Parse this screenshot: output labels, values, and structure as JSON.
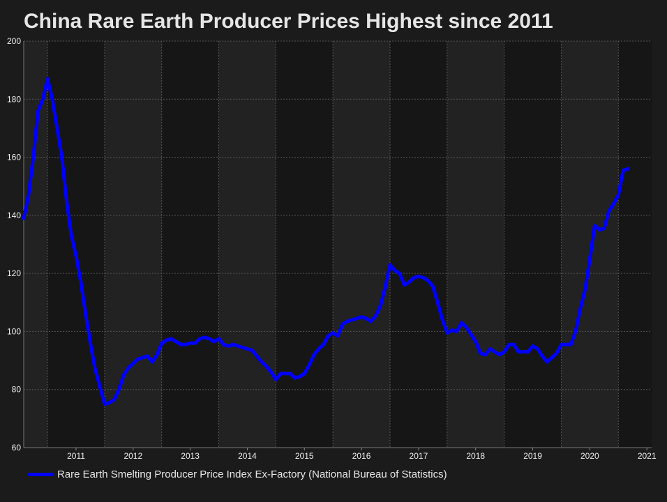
{
  "chart_data": {
    "type": "line",
    "title": "China Rare Earth Producer Prices Highest since 2011",
    "xlabel": "",
    "ylabel": "",
    "ylim": [
      60,
      200
    ],
    "xlim": [
      "2010-08",
      "2021-08"
    ],
    "yticks": [
      60,
      80,
      100,
      120,
      140,
      160,
      180,
      200
    ],
    "xticks": [
      "2011",
      "2012",
      "2013",
      "2014",
      "2015",
      "2016",
      "2017",
      "2018",
      "2019",
      "2020",
      "2021"
    ],
    "grid": true,
    "legend_position": "bottom-left",
    "colors": {
      "series": "#0000ff",
      "background": "#1b1b1b",
      "band_dark": "#161616",
      "band_light": "#222222",
      "grid": "#555555"
    },
    "series": [
      {
        "name": "Rare Earth Smelting Producer Price Index Ex-Factory (National Bureau of Statistics)",
        "points": [
          [
            "2010-08",
            139
          ],
          [
            "2010-09",
            147
          ],
          [
            "2010-10",
            160
          ],
          [
            "2010-11",
            176
          ],
          [
            "2010-12",
            180
          ],
          [
            "2011-01",
            187
          ],
          [
            "2011-02",
            180
          ],
          [
            "2011-03",
            170
          ],
          [
            "2011-04",
            160
          ],
          [
            "2011-05",
            145
          ],
          [
            "2011-06",
            133
          ],
          [
            "2011-07",
            126
          ],
          [
            "2011-08",
            117
          ],
          [
            "2011-09",
            106
          ],
          [
            "2011-10",
            96
          ],
          [
            "2011-11",
            87
          ],
          [
            "2011-12",
            81
          ],
          [
            "2012-01",
            75
          ],
          [
            "2012-02",
            75.5
          ],
          [
            "2012-03",
            76.5
          ],
          [
            "2012-04",
            80
          ],
          [
            "2012-05",
            85
          ],
          [
            "2012-06",
            87.5
          ],
          [
            "2012-07",
            89
          ],
          [
            "2012-08",
            90.5
          ],
          [
            "2012-09",
            91
          ],
          [
            "2012-10",
            91.5
          ],
          [
            "2012-11",
            89.5
          ],
          [
            "2012-12",
            92
          ],
          [
            "2013-01",
            96
          ],
          [
            "2013-02",
            97
          ],
          [
            "2013-03",
            97.5
          ],
          [
            "2013-04",
            96.5
          ],
          [
            "2013-05",
            95.5
          ],
          [
            "2013-06",
            95.5
          ],
          [
            "2013-07",
            96
          ],
          [
            "2013-08",
            96
          ],
          [
            "2013-09",
            97.5
          ],
          [
            "2013-10",
            98
          ],
          [
            "2013-11",
            97.5
          ],
          [
            "2013-12",
            96.5
          ],
          [
            "2014-01",
            97.5
          ],
          [
            "2014-02",
            95.5
          ],
          [
            "2014-03",
            95
          ],
          [
            "2014-04",
            95.5
          ],
          [
            "2014-05",
            95
          ],
          [
            "2014-06",
            94.5
          ],
          [
            "2014-07",
            94
          ],
          [
            "2014-08",
            93.5
          ],
          [
            "2014-09",
            91.5
          ],
          [
            "2014-10",
            89.5
          ],
          [
            "2014-11",
            88
          ],
          [
            "2014-12",
            86
          ],
          [
            "2015-01",
            83.5
          ],
          [
            "2015-02",
            85.5
          ],
          [
            "2015-03",
            85.5
          ],
          [
            "2015-04",
            85.5
          ],
          [
            "2015-05",
            84
          ],
          [
            "2015-06",
            84.5
          ],
          [
            "2015-07",
            85.5
          ],
          [
            "2015-08",
            88.5
          ],
          [
            "2015-09",
            92
          ],
          [
            "2015-10",
            94
          ],
          [
            "2015-11",
            95.5
          ],
          [
            "2015-12",
            98.5
          ],
          [
            "2016-01",
            99.5
          ],
          [
            "2016-02",
            98.5
          ],
          [
            "2016-03",
            102.5
          ],
          [
            "2016-04",
            103.5
          ],
          [
            "2016-05",
            104
          ],
          [
            "2016-06",
            104.5
          ],
          [
            "2016-07",
            105
          ],
          [
            "2016-08",
            104.5
          ],
          [
            "2016-09",
            103.5
          ],
          [
            "2016-10",
            105.5
          ],
          [
            "2016-11",
            109
          ],
          [
            "2016-12",
            115.5
          ],
          [
            "2017-01",
            123
          ],
          [
            "2017-02",
            121
          ],
          [
            "2017-03",
            120
          ],
          [
            "2017-04",
            116
          ],
          [
            "2017-05",
            117
          ],
          [
            "2017-06",
            118.5
          ],
          [
            "2017-07",
            119
          ],
          [
            "2017-08",
            118.5
          ],
          [
            "2017-09",
            117.5
          ],
          [
            "2017-10",
            115.5
          ],
          [
            "2017-11",
            110
          ],
          [
            "2017-12",
            104
          ],
          [
            "2018-01",
            99.5
          ],
          [
            "2018-02",
            100.5
          ],
          [
            "2018-03",
            100
          ],
          [
            "2018-04",
            103
          ],
          [
            "2018-05",
            101.5
          ],
          [
            "2018-06",
            99
          ],
          [
            "2018-07",
            96.5
          ],
          [
            "2018-08",
            92.5
          ],
          [
            "2018-09",
            92
          ],
          [
            "2018-10",
            94
          ],
          [
            "2018-11",
            93
          ],
          [
            "2018-12",
            92
          ],
          [
            "2019-01",
            93
          ],
          [
            "2019-02",
            95.5
          ],
          [
            "2019-03",
            95.5
          ],
          [
            "2019-04",
            93
          ],
          [
            "2019-05",
            93
          ],
          [
            "2019-06",
            93
          ],
          [
            "2019-07",
            95
          ],
          [
            "2019-08",
            94
          ],
          [
            "2019-09",
            91.5
          ],
          [
            "2019-10",
            89.5
          ],
          [
            "2019-11",
            91
          ],
          [
            "2019-12",
            92.5
          ],
          [
            "2020-01",
            95.5
          ],
          [
            "2020-02",
            95.5
          ],
          [
            "2020-03",
            95.5
          ],
          [
            "2020-04",
            100
          ],
          [
            "2020-05",
            108
          ],
          [
            "2020-06",
            114.5
          ],
          [
            "2020-07",
            125
          ],
          [
            "2020-08",
            136.5
          ],
          [
            "2020-09",
            135
          ],
          [
            "2020-10",
            135.5
          ],
          [
            "2020-11",
            141.5
          ],
          [
            "2020-12",
            144
          ],
          [
            "2021-01",
            147
          ],
          [
            "2021-02",
            155.5
          ],
          [
            "2021-03",
            156
          ]
        ]
      }
    ]
  }
}
